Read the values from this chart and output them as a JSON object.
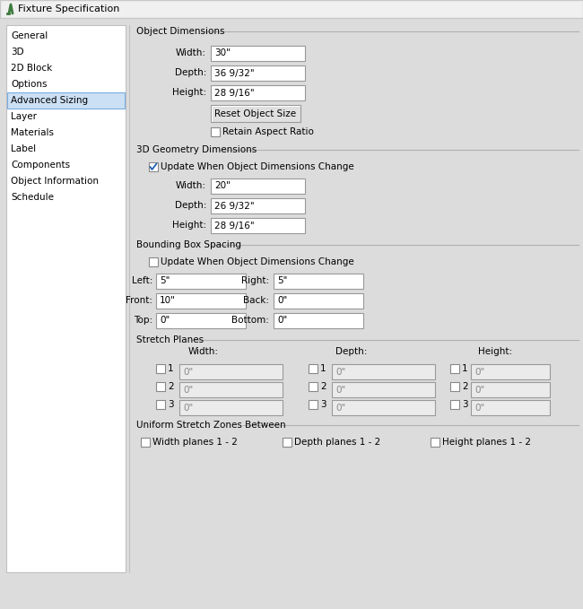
{
  "title": "Fixture Specification",
  "bg_color": "#dcdcdc",
  "sidebar_bg": "#ffffff",
  "sidebar_selected_bg": "#cce0f5",
  "sidebar_selected_border": "#7aade0",
  "input_bg": "#ffffff",
  "input_border": "#aaaaaa",
  "disabled_input_bg": "#ebebeb",
  "disabled_text_color": "#888888",
  "titlebar_bg": "#f0f0f0",
  "sidebar_items": [
    "General",
    "3D",
    "2D Block",
    "Options",
    "Advanced Sizing",
    "Layer",
    "Materials",
    "Label",
    "Components",
    "Object Information",
    "Schedule"
  ],
  "selected_item": "Advanced Sizing",
  "section1_title": "Object Dimensions",
  "obj_dim_fields": [
    {
      "label": "Width:",
      "value": "30\""
    },
    {
      "label": "Depth:",
      "value": "36 9/32\""
    },
    {
      "label": "Height:",
      "value": "28 9/16\""
    }
  ],
  "reset_button": "Reset Object Size",
  "retain_checkbox": "Retain Aspect Ratio",
  "section2_title": "3D Geometry Dimensions",
  "geo_checkbox": "Update When Object Dimensions Change",
  "geo_checked": true,
  "geo_dim_fields": [
    {
      "label": "Width:",
      "value": "20\""
    },
    {
      "label": "Depth:",
      "value": "26 9/32\""
    },
    {
      "label": "Height:",
      "value": "28 9/16\""
    }
  ],
  "section3_title": "Bounding Box Spacing",
  "bbox_checkbox": "Update When Object Dimensions Change",
  "bbox_checked": false,
  "bbox_fields": [
    {
      "label1": "Left:",
      "val1": "5\"",
      "label2": "Right:",
      "val2": "5\""
    },
    {
      "label1": "Front:",
      "val1": "10\"",
      "label2": "Back:",
      "val2": "0\""
    },
    {
      "label1": "Top:",
      "val1": "0\"",
      "label2": "Bottom:",
      "val2": "0\""
    }
  ],
  "section4_title": "Stretch Planes",
  "stretch_headers": [
    "Width:",
    "Depth:",
    "Height:"
  ],
  "stretch_rows": 3,
  "section5_title": "Uniform Stretch Zones Between",
  "uniform_items": [
    "Width planes 1 - 2",
    "Depth planes 1 - 2",
    "Height planes 1 - 2"
  ],
  "font_size": 7.5,
  "small_font": 7.0
}
